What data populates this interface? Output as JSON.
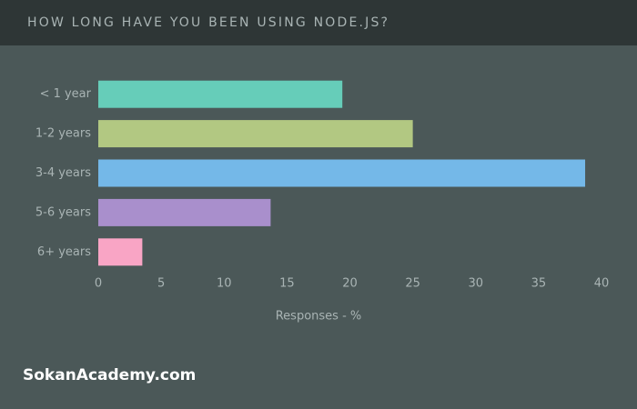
{
  "chart_data": {
    "type": "bar",
    "orientation": "horizontal",
    "title": "HOW LONG HAVE YOU BEEN USING NODE.JS?",
    "x_label": "Responses - %",
    "categories": [
      "< 1 year",
      "1-2 years",
      "3-4 years",
      "5-6 years",
      "6+ years"
    ],
    "values": [
      19.4,
      25,
      38.7,
      13.7,
      3.5
    ],
    "colors": [
      "#66cdb9",
      "#b2c882",
      "#74b8e8",
      "#a98fcc",
      "#f9a5c5"
    ],
    "xlim": [
      0,
      40
    ],
    "xticks": [
      0,
      5,
      10,
      15,
      20,
      25,
      30,
      35,
      40
    ]
  },
  "watermark": "SokanAcademy.com"
}
